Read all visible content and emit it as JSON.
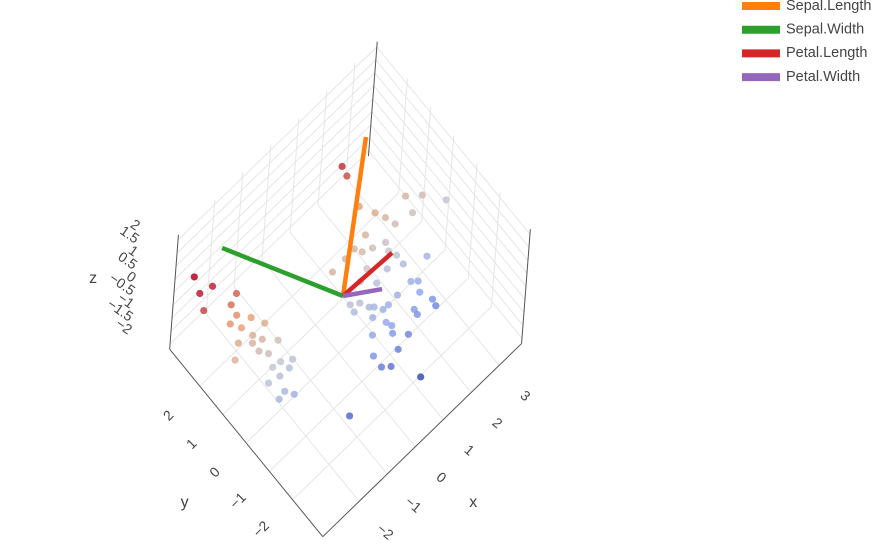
{
  "chart_data": {
    "type": "scatter3d",
    "xaxis_title": "x",
    "yaxis_title": "y",
    "zaxis_title": "z",
    "xlim": [
      -3.3,
      3.8
    ],
    "ylim": [
      -3.3,
      3.3
    ],
    "zlim": [
      -2.2,
      2.2
    ],
    "xticks": [
      {
        "value": -2,
        "label": "−2"
      },
      {
        "value": -1,
        "label": "−1"
      },
      0,
      1,
      2,
      3
    ],
    "yticks": [
      {
        "value": -2,
        "label": "−2"
      },
      {
        "value": -1,
        "label": "−1"
      },
      0,
      1,
      2
    ],
    "zticks": [
      {
        "value": -2,
        "label": "−2"
      },
      {
        "value": -1.5,
        "label": "−1.5"
      },
      {
        "value": -1,
        "label": "−1"
      },
      {
        "value": -0.5,
        "label": "−0.5"
      },
      0,
      0.5,
      1,
      1.5,
      2
    ],
    "grid": true,
    "legend": "top-right",
    "points": {
      "x": [
        2.09,
        2.03,
        -2.65,
        -2.81,
        -2.44,
        -3.01,
        -2.08,
        -2.37,
        -2.43,
        -2.18,
        -2.0,
        -2.7,
        -2.54,
        -2.44,
        -2.31,
        -2.85,
        -2.57,
        -2.01,
        -2.57,
        -2.42,
        -3.19,
        -2.31,
        -2.03,
        -2.56,
        -2.24,
        -2.56,
        -2.9,
        -2.71,
        -2.57,
        -2.95,
        0.18,
        0.65,
        1.78,
        1.99,
        2.12,
        2.21,
        2.87,
        2.74,
        3.22,
        1.44,
        0.99,
        1.1,
        1.37,
        1.72,
        1.64,
        1.73,
        0.92,
        1.32,
        1.72,
        0.88,
        0.58,
        3.62,
        2.32,
        1.74,
        1.59,
        1.59,
        1.73,
        1.69,
        1.2,
        1.18,
        1.1,
        0.76,
        0.44,
        0.22,
        -0.04,
        0.34,
        0.24,
        0.58,
        0.43,
        0.49,
        0.38,
        -0.05,
        0.68,
        0.23,
        -0.37,
        -0.39,
        -0.19,
        0.23,
        -1.82,
        0.0
      ],
      "y": [
        2.56,
        2.28,
        3.21,
        2.78,
        2.68,
        2.37,
        2.08,
        1.96,
        1.65,
        1.33,
        0.96,
        1.6,
        1.31,
        0.95,
        0.69,
        1.07,
        0.8,
        0.37,
        0.52,
        0.29,
        0.8,
        -0.1,
        -0.28,
        -0.06,
        -0.39,
        -0.37,
        -0.29,
        -0.76,
        -1.0,
        -0.81,
        0.67,
        0.68,
        1.45,
        1.02,
        0.73,
        0.42,
        0.77,
        0.31,
        0.47,
        0.77,
        0.71,
        0.5,
        0.38,
        0.24,
        0.01,
        -0.22,
        0.08,
        -0.31,
        -0.52,
        -0.39,
        -0.05,
        -0.08,
        -0.82,
        -1.14,
        -1.01,
        -1.39,
        -1.77,
        -1.96,
        -1.62,
        -1.78,
        -1.02,
        -1.04,
        -0.81,
        -0.46,
        -0.53,
        -0.72,
        -0.99,
        -1.03,
        -1.34,
        -1.51,
        -1.68,
        -1.33,
        -2.0,
        -2.1,
        -1.76,
        -2.13,
        -2.3,
        -3.07,
        -2.48,
        -0.31
      ],
      "z": [
        0,
        0,
        0,
        0,
        0,
        0,
        0,
        0,
        0,
        0,
        0,
        0,
        0,
        0,
        0,
        0,
        0,
        0,
        0,
        0,
        0,
        0,
        0,
        0,
        0,
        0,
        0,
        0,
        0,
        0,
        0,
        0,
        0,
        0,
        0,
        0,
        0,
        0,
        0,
        0,
        0,
        0,
        0,
        0,
        0,
        0,
        0,
        0,
        0,
        0,
        0,
        0,
        0,
        0,
        0,
        0,
        0,
        0,
        0,
        0,
        0,
        0,
        0,
        0,
        0,
        0,
        0,
        0,
        0,
        0,
        0,
        0,
        0,
        0,
        0,
        0,
        0,
        0,
        0,
        0
      ],
      "colorscale": [
        "#3b4cc0",
        "#8fa6ee",
        "#c8c8d0",
        "#e8a070",
        "#b40426"
      ],
      "color_range": [
        -3,
        3
      ]
    },
    "series": [
      {
        "name": "Sepal.Length",
        "color": "#ff7f0e",
        "x": 2.07,
        "y": 1.69,
        "z": 2.1
      },
      {
        "name": "Sepal.Width",
        "color": "#2ca02c",
        "x": -2.32,
        "y": 2.54,
        "z": 1.5
      },
      {
        "name": "Petal.Length",
        "color": "#d62728",
        "x": 1.54,
        "y": -0.23,
        "z": 0.3
      },
      {
        "name": "Petal.Width",
        "color": "#9467bd",
        "x": 0.89,
        "y": -0.61,
        "z": 0
      }
    ]
  }
}
